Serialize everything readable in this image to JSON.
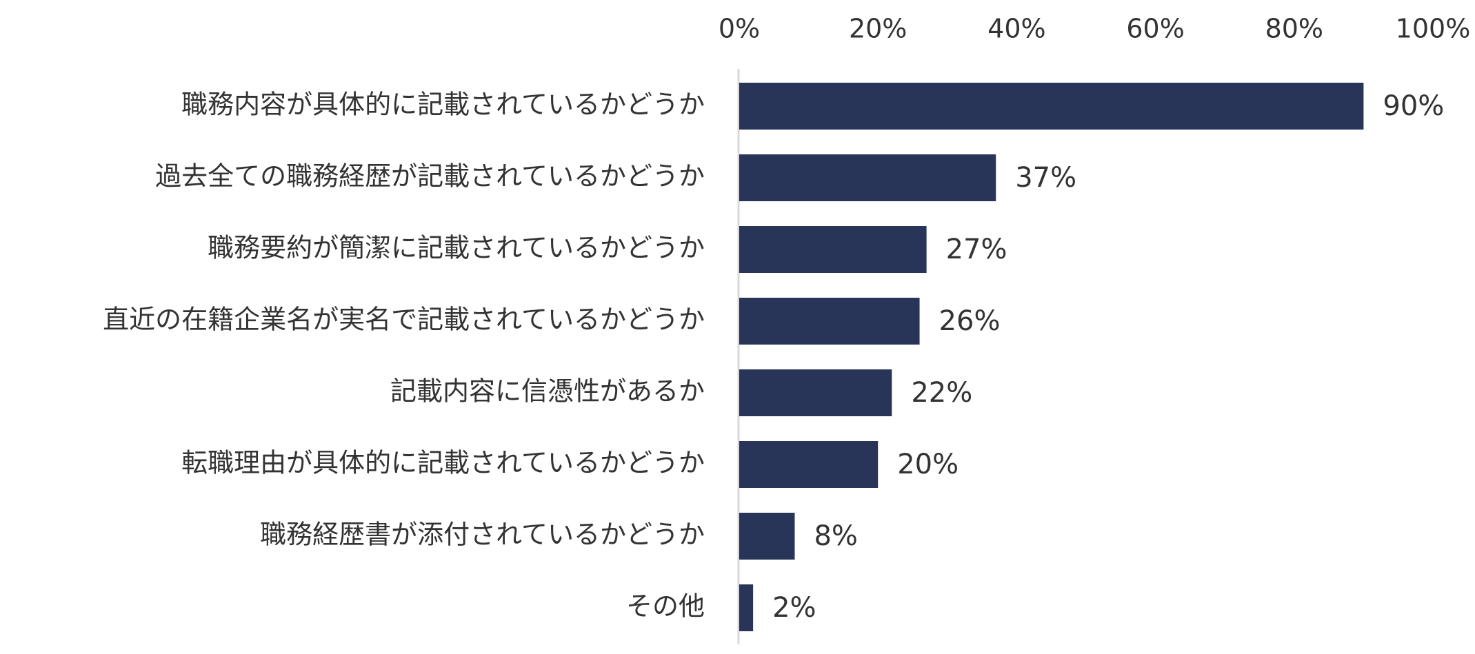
{
  "chart_data": {
    "type": "bar",
    "orientation": "horizontal",
    "title": "",
    "xlabel": "",
    "ylabel": "",
    "xlim": [
      0,
      100
    ],
    "ticks": [
      0,
      20,
      40,
      60,
      80,
      100
    ],
    "tick_labels": [
      "0%",
      "20%",
      "40%",
      "60%",
      "80%",
      "100%"
    ],
    "axis_position": "top",
    "grid": false,
    "legend": "none",
    "bar_color": "#283559",
    "categories": [
      "職務内容が具体的に記載されているかどうか",
      "過去全ての職務経歴が記載されているかどうか",
      "職務要約が簡潔に記載されているかどうか",
      "直近の在籍企業名が実名で記載されているかどうか",
      "記載内容に信憑性があるか",
      "転職理由が具体的に記載されているかどうか",
      "職務経歴書が添付されているかどうか",
      "その他"
    ],
    "values": [
      90,
      37,
      27,
      26,
      22,
      20,
      8,
      2
    ],
    "value_labels": [
      "90%",
      "37%",
      "27%",
      "26%",
      "22%",
      "20%",
      "8%",
      "2%"
    ]
  }
}
